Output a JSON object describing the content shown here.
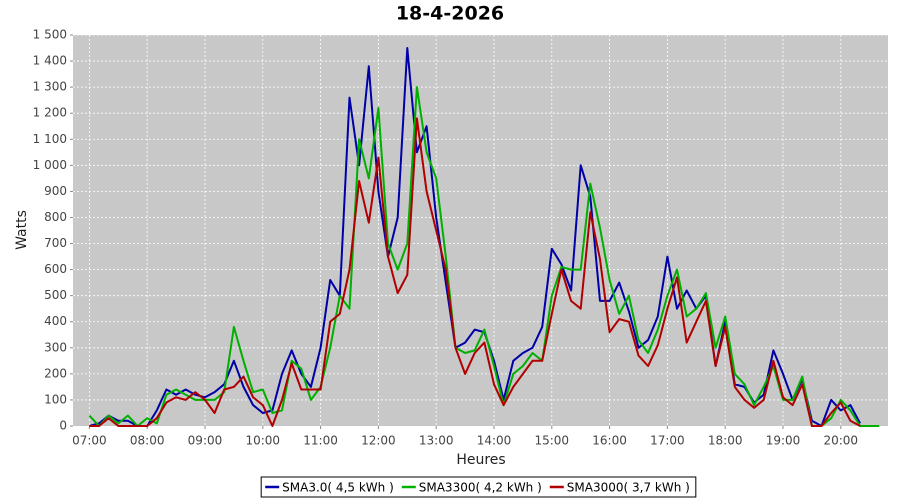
{
  "chart_data": {
    "type": "line",
    "title": "18-4-2026",
    "x_label": "Heures",
    "y_label": "Watts",
    "x": [
      "07:00",
      "07:10",
      "07:20",
      "07:30",
      "07:40",
      "07:50",
      "08:00",
      "08:10",
      "08:20",
      "08:30",
      "08:40",
      "08:50",
      "09:00",
      "09:10",
      "09:20",
      "09:30",
      "09:40",
      "09:50",
      "10:00",
      "10:10",
      "10:20",
      "10:30",
      "10:40",
      "10:50",
      "11:00",
      "11:10",
      "11:20",
      "11:30",
      "11:40",
      "11:50",
      "12:00",
      "12:10",
      "12:20",
      "12:30",
      "12:40",
      "12:50",
      "13:00",
      "13:10",
      "13:20",
      "13:30",
      "13:40",
      "13:50",
      "14:00",
      "14:10",
      "14:20",
      "14:30",
      "14:40",
      "14:50",
      "15:00",
      "15:10",
      "15:20",
      "15:30",
      "15:40",
      "15:50",
      "16:00",
      "16:10",
      "16:20",
      "16:30",
      "16:40",
      "16:50",
      "17:00",
      "17:10",
      "17:20",
      "17:30",
      "17:40",
      "17:50",
      "18:00",
      "18:10",
      "18:20",
      "18:30",
      "18:40",
      "18:50",
      "19:00",
      "19:10",
      "19:20",
      "19:30",
      "19:40",
      "19:50",
      "20:00",
      "20:10",
      "20:20",
      "20:30",
      "20:40"
    ],
    "series": [
      {
        "name": "SMA3.0( 4,5 kWh )",
        "color": "#0000a8",
        "values": [
          0,
          10,
          40,
          20,
          20,
          0,
          0,
          60,
          140,
          120,
          140,
          120,
          110,
          130,
          160,
          250,
          150,
          80,
          50,
          60,
          200,
          290,
          200,
          150,
          300,
          560,
          500,
          1260,
          1000,
          1380,
          900,
          650,
          800,
          1450,
          1050,
          1150,
          800,
          550,
          300,
          320,
          370,
          360,
          250,
          100,
          250,
          280,
          300,
          380,
          680,
          620,
          520,
          1000,
          880,
          480,
          480,
          550,
          440,
          300,
          330,
          420,
          650,
          450,
          520,
          450,
          500,
          230,
          400,
          160,
          150,
          90,
          120,
          290,
          200,
          100,
          180,
          20,
          0,
          100,
          60,
          80,
          10,
          null,
          null
        ]
      },
      {
        "name": "SMA3300( 4,2 kWh )",
        "color": "#00b000",
        "values": [
          40,
          0,
          40,
          10,
          40,
          0,
          30,
          10,
          120,
          140,
          120,
          100,
          100,
          100,
          130,
          380,
          250,
          130,
          140,
          50,
          60,
          250,
          220,
          100,
          150,
          300,
          500,
          450,
          1100,
          950,
          1220,
          700,
          600,
          700,
          1300,
          1050,
          950,
          650,
          300,
          280,
          290,
          370,
          230,
          80,
          200,
          230,
          280,
          250,
          500,
          610,
          600,
          600,
          930,
          760,
          560,
          430,
          500,
          330,
          280,
          370,
          500,
          600,
          420,
          450,
          510,
          300,
          420,
          200,
          160,
          80,
          150,
          230,
          100,
          100,
          190,
          0,
          0,
          30,
          100,
          60,
          0,
          0,
          0
        ]
      },
      {
        "name": "SMA3000( 3,7 kWh )",
        "color": "#b00000",
        "values": [
          0,
          0,
          30,
          0,
          0,
          0,
          0,
          30,
          90,
          110,
          100,
          130,
          100,
          50,
          140,
          150,
          190,
          110,
          80,
          0,
          100,
          240,
          140,
          140,
          140,
          400,
          430,
          600,
          940,
          780,
          1030,
          650,
          510,
          580,
          1180,
          900,
          750,
          600,
          300,
          200,
          280,
          320,
          160,
          80,
          150,
          200,
          250,
          250,
          430,
          600,
          480,
          450,
          820,
          640,
          360,
          410,
          400,
          270,
          230,
          310,
          450,
          570,
          320,
          400,
          480,
          230,
          380,
          150,
          100,
          70,
          100,
          250,
          110,
          80,
          160,
          0,
          0,
          50,
          90,
          20,
          0,
          null,
          null
        ]
      }
    ],
    "xlim": [
      "06:43",
      "20:49"
    ],
    "xticks": [
      "07:00",
      "08:00",
      "09:00",
      "10:00",
      "11:00",
      "12:00",
      "13:00",
      "14:00",
      "15:00",
      "16:00",
      "17:00",
      "18:00",
      "19:00",
      "20:00"
    ],
    "ylim": [
      0,
      1500
    ],
    "yticks": [
      0,
      100,
      200,
      300,
      400,
      500,
      600,
      700,
      800,
      900,
      {
        "value": 1000,
        "label": "1 000"
      },
      {
        "value": 1100,
        "label": "1 100"
      },
      {
        "value": 1200,
        "label": "1 200"
      },
      {
        "value": 1300,
        "label": "1 300"
      },
      {
        "value": 1400,
        "label": "1 400"
      },
      {
        "value": 1500,
        "label": "1 500"
      }
    ],
    "grid": true,
    "legend": "bottom"
  }
}
